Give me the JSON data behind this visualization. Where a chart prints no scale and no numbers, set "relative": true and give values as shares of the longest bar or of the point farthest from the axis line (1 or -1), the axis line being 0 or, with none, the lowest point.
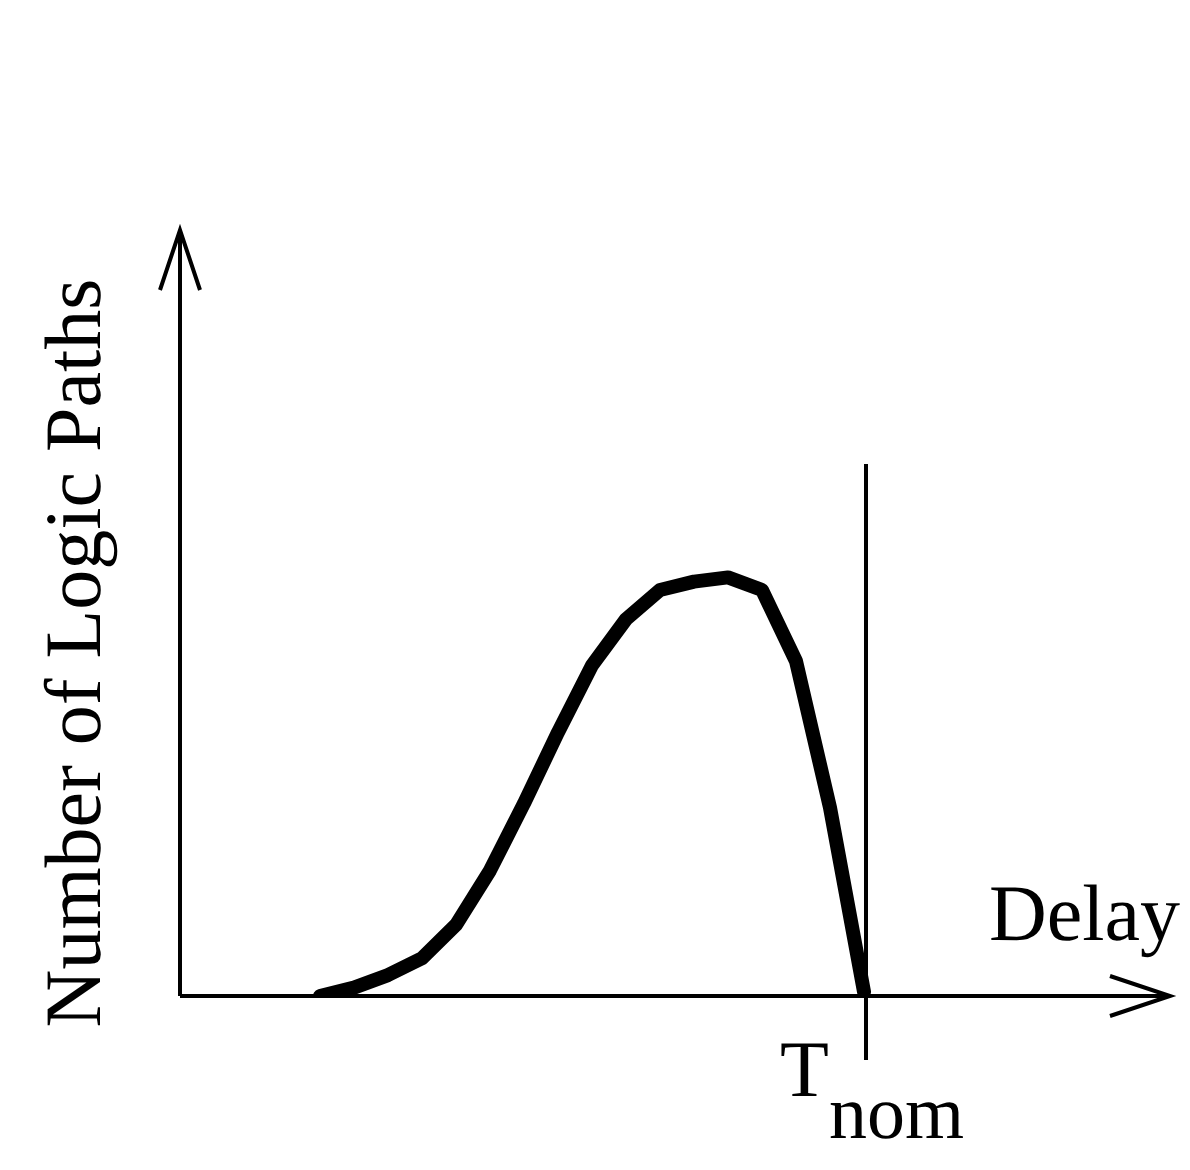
{
  "chart_data": {
    "type": "line",
    "relative": true,
    "xlabel": "Delay",
    "ylabel": "Number of Logic Paths",
    "tick_labels": false,
    "legend": false,
    "marker": "none",
    "line_style": "solid",
    "categories": [
      null,
      null,
      null,
      null,
      null,
      null,
      null,
      null,
      null,
      null,
      null,
      null,
      null,
      null,
      null,
      null,
      null
    ],
    "series": [
      {
        "color": "#000000",
        "values": [
          0,
          0.02,
          0.05,
          0.09,
          0.17,
          0.3,
          0.46,
          0.63,
          0.79,
          0.9,
          0.97,
          0.99,
          1,
          0.97,
          0.8,
          0.45,
          0.01
        ]
      }
    ],
    "annotations": [
      "T$_{nom}$"
    ]
  }
}
